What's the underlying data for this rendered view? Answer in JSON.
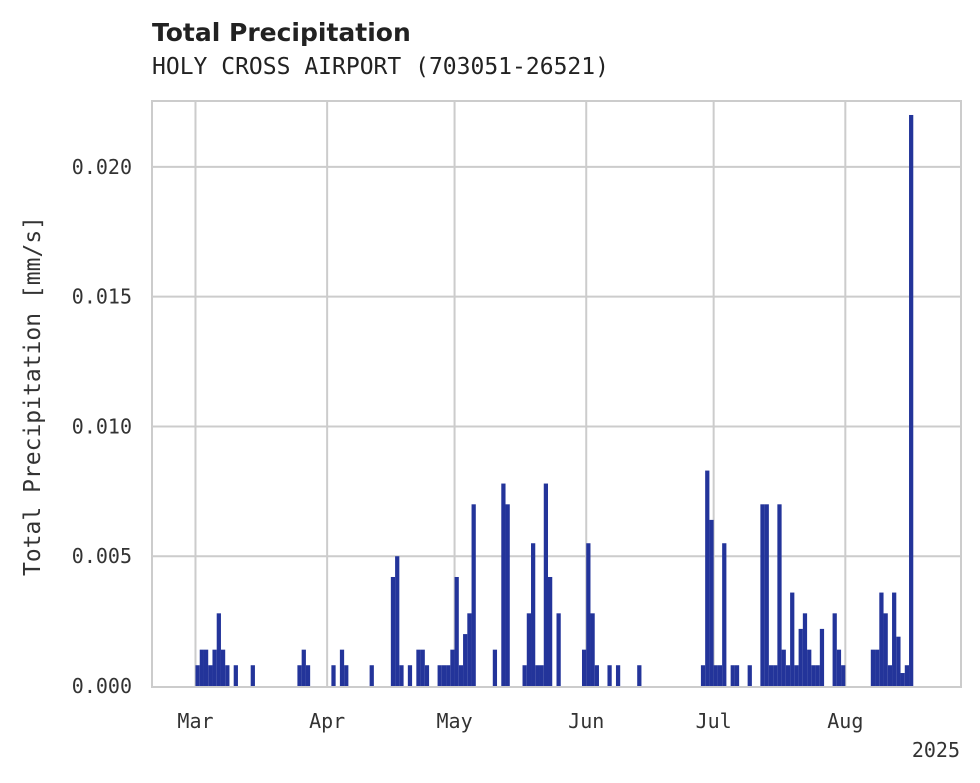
{
  "chart_data": {
    "type": "bar",
    "title": "Total Precipitation",
    "subtitle": "HOLY CROSS AIRPORT (703051-26521)",
    "xlabel": "",
    "ylabel": "Total Precipitation [mm/s]",
    "year_label": "2025",
    "xlim": [
      "2025-02-19",
      "2025-08-28"
    ],
    "ylim": [
      0,
      0.0225
    ],
    "x_ticks": [
      {
        "date": "2025-03-01",
        "label": "Mar"
      },
      {
        "date": "2025-04-01",
        "label": "Apr"
      },
      {
        "date": "2025-05-01",
        "label": "May"
      },
      {
        "date": "2025-06-01",
        "label": "Jun"
      },
      {
        "date": "2025-07-01",
        "label": "Jul"
      },
      {
        "date": "2025-08-01",
        "label": "Aug"
      }
    ],
    "y_ticks": [
      {
        "value": 0.0,
        "label": "0.000"
      },
      {
        "value": 0.005,
        "label": "0.005"
      },
      {
        "value": 0.01,
        "label": "0.010"
      },
      {
        "value": 0.015,
        "label": "0.015"
      },
      {
        "value": 0.02,
        "label": "0.020"
      }
    ],
    "grid": true,
    "bar_color": "#23349a",
    "series": [
      {
        "dates": [
          "2025-03-01",
          "2025-03-02",
          "2025-03-03",
          "2025-03-04",
          "2025-03-05",
          "2025-03-06",
          "2025-03-07",
          "2025-03-08",
          "2025-03-10",
          "2025-03-14",
          "2025-03-25",
          "2025-03-26",
          "2025-03-27",
          "2025-04-02",
          "2025-04-04",
          "2025-04-05",
          "2025-04-11",
          "2025-04-16",
          "2025-04-17",
          "2025-04-18",
          "2025-04-20",
          "2025-04-22",
          "2025-04-23",
          "2025-04-24",
          "2025-04-27",
          "2025-04-28",
          "2025-04-29",
          "2025-04-30",
          "2025-05-01",
          "2025-05-02",
          "2025-05-03",
          "2025-05-04",
          "2025-05-05",
          "2025-05-10",
          "2025-05-12",
          "2025-05-13",
          "2025-05-17",
          "2025-05-18",
          "2025-05-19",
          "2025-05-20",
          "2025-05-21",
          "2025-05-22",
          "2025-05-23",
          "2025-05-25",
          "2025-05-31",
          "2025-06-01",
          "2025-06-02",
          "2025-06-03",
          "2025-06-06",
          "2025-06-08",
          "2025-06-13",
          "2025-06-28",
          "2025-06-29",
          "2025-06-30",
          "2025-07-01",
          "2025-07-02",
          "2025-07-03",
          "2025-07-05",
          "2025-07-06",
          "2025-07-09",
          "2025-07-12",
          "2025-07-13",
          "2025-07-14",
          "2025-07-15",
          "2025-07-16",
          "2025-07-17",
          "2025-07-18",
          "2025-07-19",
          "2025-07-20",
          "2025-07-21",
          "2025-07-22",
          "2025-07-23",
          "2025-07-24",
          "2025-07-25",
          "2025-07-26",
          "2025-07-29",
          "2025-07-30",
          "2025-07-31",
          "2025-08-07",
          "2025-08-08",
          "2025-08-09",
          "2025-08-10",
          "2025-08-11",
          "2025-08-12",
          "2025-08-13",
          "2025-08-14",
          "2025-08-15",
          "2025-08-16"
        ],
        "values": [
          0.0008,
          0.0014,
          0.0014,
          0.0008,
          0.0014,
          0.0028,
          0.0014,
          0.0008,
          0.0008,
          0.0008,
          0.0008,
          0.0014,
          0.0008,
          0.0008,
          0.0014,
          0.0008,
          0.0008,
          0.0042,
          0.005,
          0.0008,
          0.0008,
          0.0014,
          0.0014,
          0.0008,
          0.0008,
          0.0008,
          0.0008,
          0.0014,
          0.0042,
          0.0008,
          0.002,
          0.0028,
          0.007,
          0.0014,
          0.0078,
          0.007,
          0.0008,
          0.0028,
          0.0055,
          0.0008,
          0.0008,
          0.0078,
          0.0042,
          0.0028,
          0.0014,
          0.0055,
          0.0028,
          0.0008,
          0.0008,
          0.0008,
          0.0008,
          0.0008,
          0.0083,
          0.0064,
          0.0008,
          0.0008,
          0.0055,
          0.0008,
          0.0008,
          0.0008,
          0.007,
          0.007,
          0.0008,
          0.0008,
          0.007,
          0.0014,
          0.0008,
          0.0036,
          0.0008,
          0.0022,
          0.0028,
          0.0014,
          0.0008,
          0.0008,
          0.0022,
          0.0028,
          0.0014,
          0.0008,
          0.0014,
          0.0014,
          0.0036,
          0.0028,
          0.0008,
          0.0036,
          0.0019,
          0.0005,
          0.0008,
          0.022
        ]
      }
    ]
  }
}
